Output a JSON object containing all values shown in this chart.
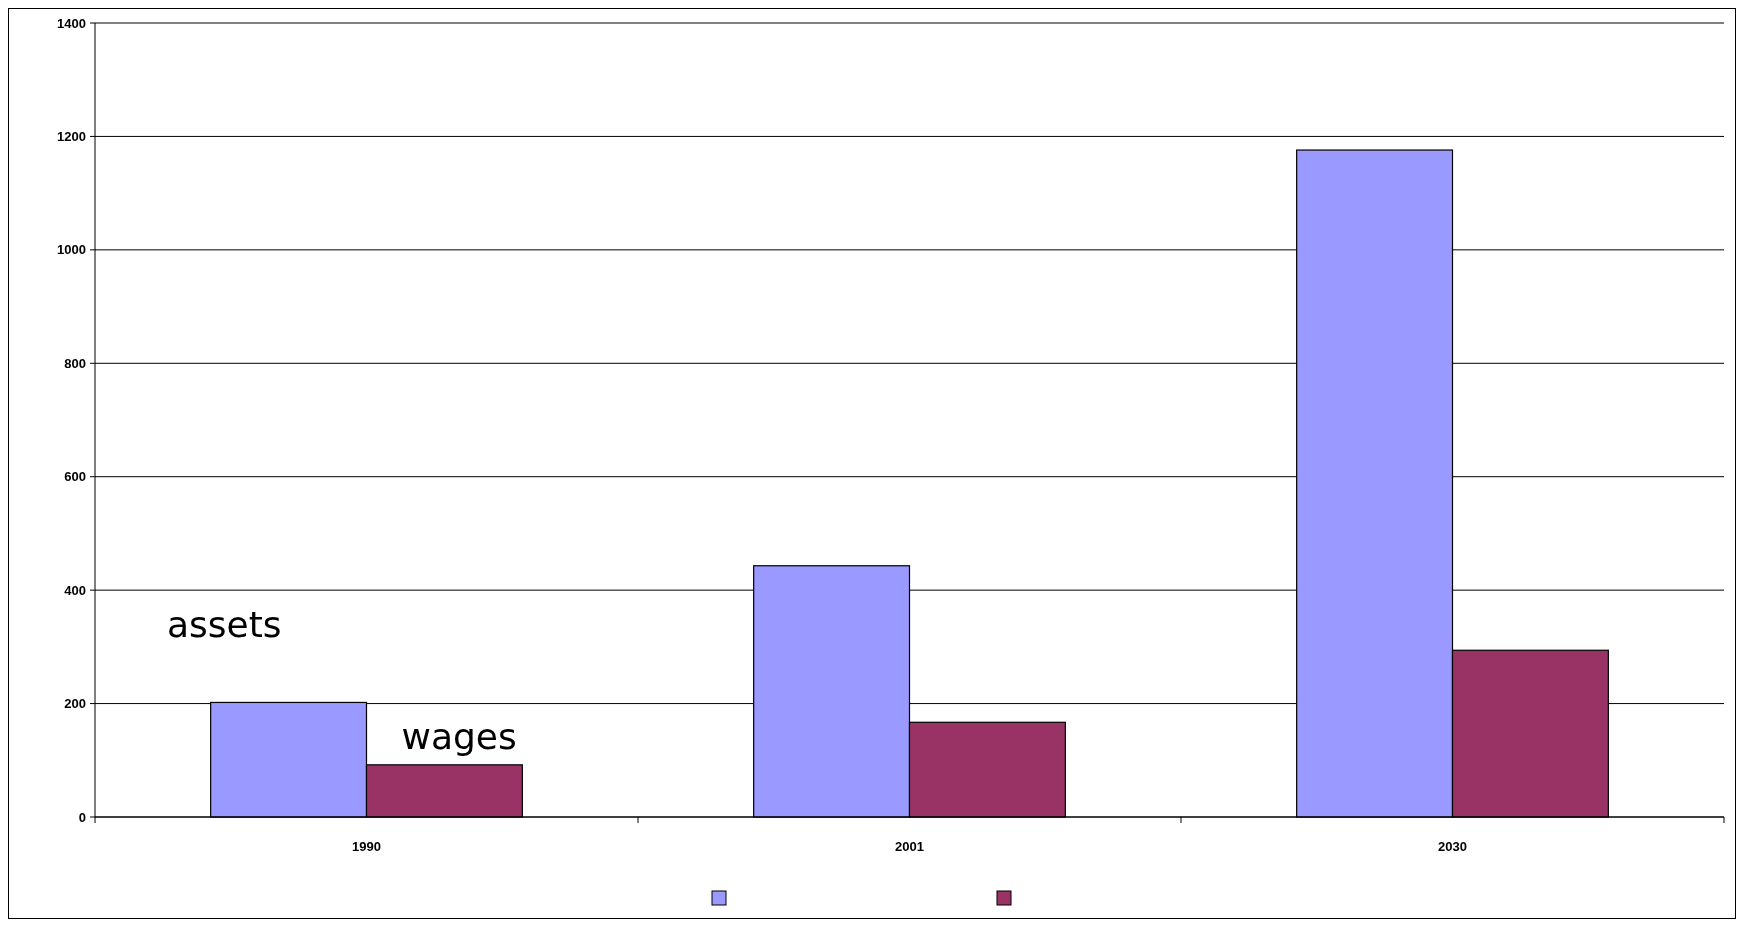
{
  "chart_data": {
    "type": "bar",
    "categories": [
      "1990",
      "2001",
      "2030"
    ],
    "series": [
      {
        "name": "assets",
        "color": "#9999ff",
        "values": [
          202,
          443,
          1176
        ]
      },
      {
        "name": "wages",
        "color": "#993366",
        "values": [
          92,
          167,
          294
        ]
      }
    ],
    "ylim": [
      0,
      1400
    ],
    "yticks": [
      0,
      200,
      400,
      600,
      800,
      1000,
      1200,
      1400
    ],
    "grid": "y",
    "legend": "bottom"
  }
}
